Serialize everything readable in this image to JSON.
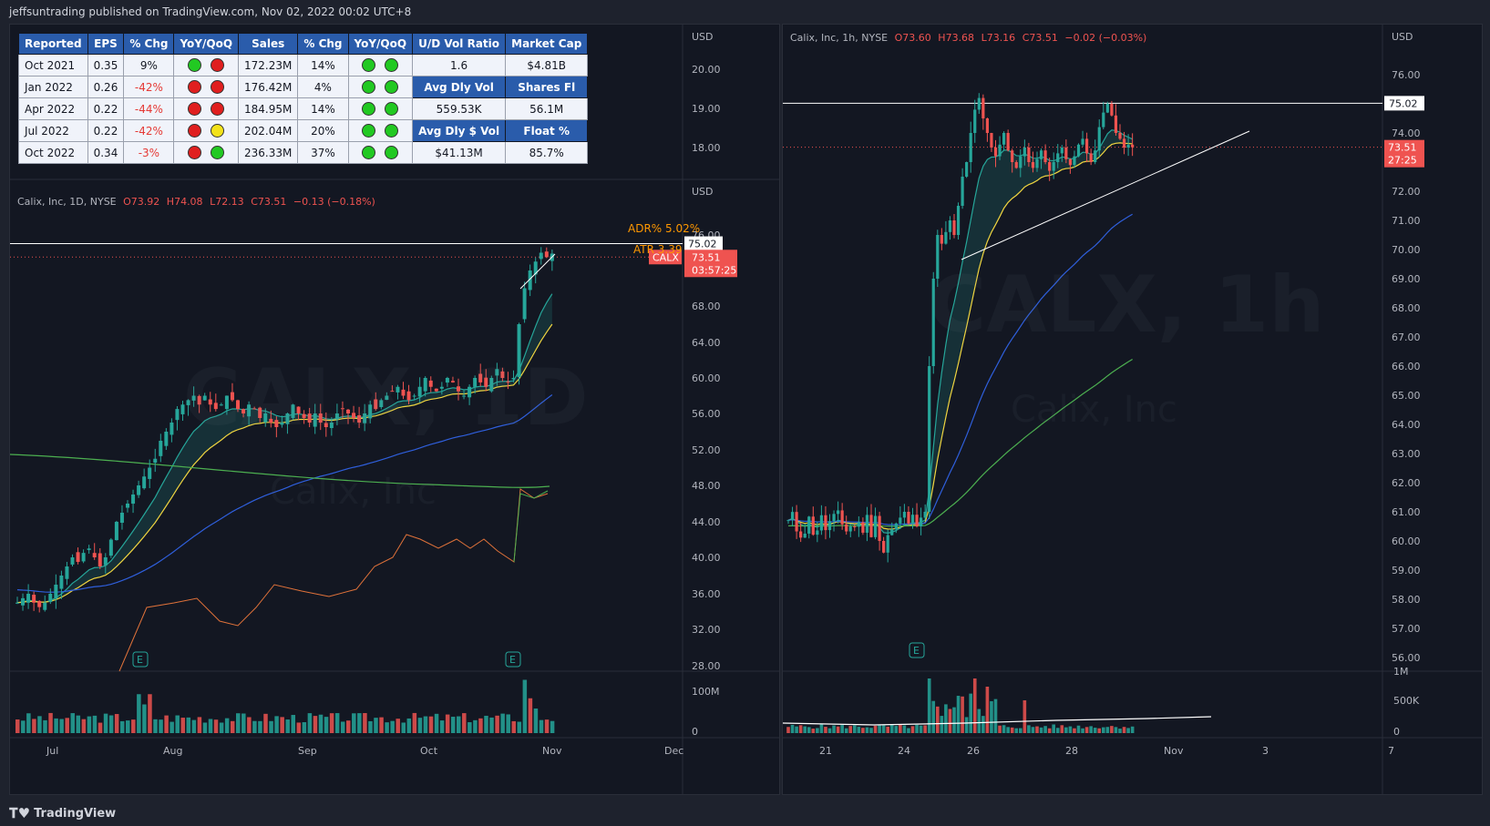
{
  "publisher": "jeffsuntrading published on TradingView.com, Nov 02, 2022 00:02 UTC+8",
  "footer_logo": "TradingView",
  "colors": {
    "up": "#26a69a",
    "down": "#ef5350",
    "ema_fast": "#26a69a",
    "ema_mid": "#f0d540",
    "ema_blue": "#2f5fdc",
    "sma_green": "#4caf50",
    "rs_orange": "#e0723a"
  },
  "fundamentals": {
    "headers": [
      "Reported",
      "EPS",
      "% Chg",
      "YoY/QoQ",
      "Sales",
      "% Chg",
      "YoY/QoQ",
      "U/D Vol Ratio",
      "Market Cap"
    ],
    "rows": [
      {
        "reported": "Oct 2021",
        "eps": "0.35",
        "eps_chg": "9%",
        "eps_dots": [
          "green",
          "red"
        ],
        "sales": "172.23M",
        "sales_chg": "14%",
        "sales_dots": [
          "green",
          "green"
        ],
        "k1": "1.6",
        "k2": "$4.81B",
        "k_header": false
      },
      {
        "reported": "Jan 2022",
        "eps": "0.26",
        "eps_chg": "-42%",
        "eps_dots": [
          "red",
          "red"
        ],
        "sales": "176.42M",
        "sales_chg": "4%",
        "sales_dots": [
          "green",
          "green"
        ],
        "k1": "Avg Dly Vol",
        "k2": "Shares Fl",
        "k_header": true
      },
      {
        "reported": "Apr 2022",
        "eps": "0.22",
        "eps_chg": "-44%",
        "eps_dots": [
          "red",
          "red"
        ],
        "sales": "184.95M",
        "sales_chg": "14%",
        "sales_dots": [
          "green",
          "green"
        ],
        "k1": "559.53K",
        "k2": "56.1M",
        "k_header": false
      },
      {
        "reported": "Jul 2022",
        "eps": "0.22",
        "eps_chg": "-42%",
        "eps_dots": [
          "red",
          "yellow"
        ],
        "sales": "202.04M",
        "sales_chg": "20%",
        "sales_dots": [
          "green",
          "green"
        ],
        "k1": "Avg Dly $ Vol",
        "k2": "Float %",
        "k_header": true
      },
      {
        "reported": "Oct 2022",
        "eps": "0.34",
        "eps_chg": "-3%",
        "eps_dots": [
          "red",
          "green"
        ],
        "sales": "236.33M",
        "sales_chg": "37%",
        "sales_dots": [
          "green",
          "green"
        ],
        "k1": "$41.13M",
        "k2": "85.7%",
        "k_header": false
      }
    ]
  },
  "left_chart": {
    "legend": {
      "symbol": "Calix, Inc, 1D, NYSE",
      "o": "O73.92",
      "h": "H74.08",
      "l": "L72.13",
      "c": "C73.51",
      "chg": "−0.13 (−0.18%)"
    },
    "currency": "USD",
    "currency_top": "USD",
    "top_axis_ticks": [
      "20.00",
      "19.00",
      "18.00"
    ],
    "adr_label": "ADR%  5.02%",
    "atr_label": "ATR   3.39",
    "watermark": "CALX, 1D",
    "watermark_sub": "Calix, Inc",
    "price_ticks": [
      "68.00",
      "64.00",
      "60.00",
      "56.00",
      "52.00",
      "48.00",
      "44.00",
      "40.00",
      "36.00",
      "32.00",
      "28.00"
    ],
    "top_tick_partial": "76.00",
    "resistance_label": "75.02",
    "last_price": "73.51",
    "countdown": "03:57:25",
    "symbol_tag": "CALX",
    "vol_ticks": [
      "100M",
      "0"
    ],
    "x_labels": [
      "Jul",
      "Aug",
      "Sep",
      "Oct",
      "Nov",
      "Dec"
    ],
    "earnings_marker": "E"
  },
  "right_chart": {
    "legend": {
      "symbol": "Calix, Inc, 1h, NYSE",
      "o": "O73.60",
      "h": "H73.68",
      "l": "L73.16",
      "c": "C73.51",
      "chg": "−0.02 (−0.03%)"
    },
    "currency": "USD",
    "watermark": "CALX, 1h",
    "watermark_sub": "Calix, Inc",
    "price_ticks": [
      "76.00",
      "74.00",
      "72.00",
      "71.00",
      "70.00",
      "69.00",
      "68.00",
      "67.00",
      "66.00",
      "65.00",
      "64.00",
      "63.00",
      "62.00",
      "61.00",
      "60.00",
      "59.00",
      "58.00",
      "57.00",
      "56.00"
    ],
    "resistance_label": "75.02",
    "last_price": "73.51",
    "countdown": "27:25",
    "vol_ticks": [
      "1M",
      "500K",
      "0"
    ],
    "x_labels": [
      "21",
      "24",
      "26",
      "28",
      "Nov",
      "3",
      "7"
    ],
    "earnings_marker": "E"
  }
}
